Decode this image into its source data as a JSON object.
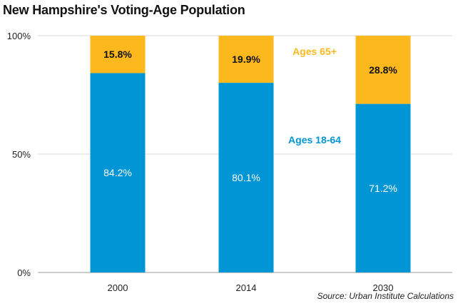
{
  "chart_data": {
    "type": "bar",
    "stacked": true,
    "title": "New Hampshire's Voting-Age Population",
    "source": "Source: Urban Institute Calculations",
    "categories": [
      "2000",
      "2014",
      "2030"
    ],
    "series": [
      {
        "name": "Ages 18-64",
        "values": [
          84.2,
          80.1,
          71.2
        ],
        "labels": [
          "84.2%",
          "80.1%",
          "71.2%"
        ],
        "color": "#0096d6",
        "label_color": "#ffffff"
      },
      {
        "name": "Ages 65+",
        "values": [
          15.8,
          19.9,
          28.8
        ],
        "labels": [
          "15.8%",
          "19.9%",
          "28.8%"
        ],
        "color": "#fdb81e",
        "label_color": "#111111"
      }
    ],
    "y_ticks": [
      {
        "value": 0,
        "label": "0%"
      },
      {
        "value": 50,
        "label": "50%"
      },
      {
        "value": 100,
        "label": "100%"
      }
    ],
    "ylim": [
      0,
      100
    ],
    "grid": true,
    "legend": "inline"
  }
}
